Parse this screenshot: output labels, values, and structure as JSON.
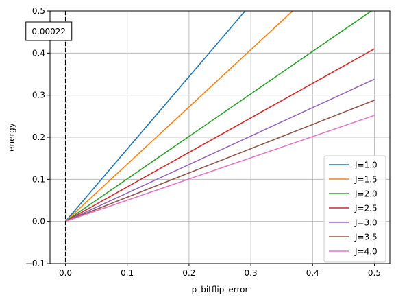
{
  "chart_data": {
    "type": "line",
    "title": "",
    "xlabel": "p_bitflip_error",
    "ylabel": "energy",
    "xlim": [
      -0.025,
      0.525
    ],
    "ylim": [
      -0.1,
      0.5
    ],
    "xticks": [
      0.0,
      0.1,
      0.2,
      0.3,
      0.4,
      0.5
    ],
    "xtick_labels": [
      "0.0",
      "0.1",
      "0.2",
      "0.3",
      "0.4",
      "0.5"
    ],
    "yticks": [
      -0.1,
      0.0,
      0.1,
      0.2,
      0.3,
      0.4,
      0.5
    ],
    "ytick_labels": [
      "−0.1",
      "0.0",
      "0.1",
      "0.2",
      "0.3",
      "0.4",
      "0.5"
    ],
    "grid": true,
    "legend_position": "lower-right",
    "x": [
      0.0,
      0.5
    ],
    "series": [
      {
        "name": "J=1.0",
        "color": "#1f77b4",
        "values": [
          0.0,
          0.86
        ]
      },
      {
        "name": "J=1.5",
        "color": "#ff7f0e",
        "values": [
          0.0,
          0.68
        ]
      },
      {
        "name": "J=2.0",
        "color": "#2ca02c",
        "values": [
          0.0,
          0.505
        ]
      },
      {
        "name": "J=2.5",
        "color": "#d62728",
        "values": [
          0.0,
          0.41
        ]
      },
      {
        "name": "J=3.0",
        "color": "#9467bd",
        "values": [
          0.0,
          0.338
        ]
      },
      {
        "name": "J=3.5",
        "color": "#8c564b",
        "values": [
          0.0,
          0.288
        ]
      },
      {
        "name": "J=4.0",
        "color": "#e377c2",
        "values": [
          0.0,
          0.252
        ]
      }
    ],
    "vline": {
      "x": 0.00022,
      "style": "dashed",
      "color": "#000000"
    },
    "annotation": {
      "text": "0.00022",
      "x": 0.00022
    }
  }
}
